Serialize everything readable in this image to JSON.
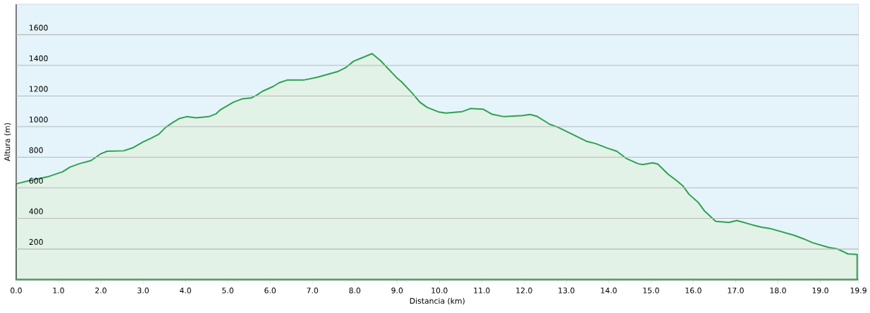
{
  "chart_data": {
    "type": "area",
    "xlabel": "Distancia  (km)",
    "ylabel": "Altura (m)",
    "x": [
      0,
      0.33,
      0.77,
      1.1,
      1.27,
      1.5,
      1.77,
      1.99,
      2.15,
      2.54,
      2.76,
      2.98,
      3.2,
      3.37,
      3.53,
      3.7,
      3.86,
      4.03,
      4.25,
      4.55,
      4.72,
      4.83,
      5.13,
      5.35,
      5.55,
      5.68,
      5.82,
      6.07,
      6.21,
      6.4,
      6.79,
      7.12,
      7.61,
      7.78,
      7.97,
      8.41,
      8.61,
      8.99,
      9.1,
      9.35,
      9.54,
      9.71,
      9.99,
      10.15,
      10.54,
      10.73,
      11.03,
      11.25,
      11.53,
      11.97,
      12.14,
      12.3,
      12.61,
      12.8,
      13.08,
      13.47,
      13.69,
      13.97,
      14.19,
      14.41,
      14.69,
      14.8,
      15.04,
      15.16,
      15.4,
      15.62,
      15.76,
      15.9,
      16.12,
      16.26,
      16.53,
      16.84,
      17.03,
      17.39,
      17.61,
      17.8,
      18.38,
      18.6,
      18.82,
      19.21,
      19.4,
      19.54,
      19.65,
      19.87
    ],
    "series": [
      {
        "color": "#2ea14f",
        "values": [
          626,
          648,
          674,
          705,
          735,
          758,
          778,
          821,
          839,
          842,
          862,
          897,
          926,
          950,
          995,
          1027,
          1053,
          1065,
          1057,
          1065,
          1083,
          1111,
          1159,
          1182,
          1187,
          1205,
          1231,
          1262,
          1286,
          1304,
          1304,
          1323,
          1361,
          1384,
          1427,
          1477,
          1431,
          1320,
          1294,
          1221,
          1159,
          1126,
          1095,
          1088,
          1098,
          1118,
          1114,
          1080,
          1065,
          1072,
          1079,
          1068,
          1015,
          996,
          958,
          905,
          889,
          859,
          839,
          793,
          758,
          752,
          763,
          755,
          690,
          644,
          610,
          557,
          503,
          450,
          381,
          374,
          386,
          358,
          343,
          335,
          290,
          267,
          241,
          209,
          201,
          183,
          168,
          165
        ]
      }
    ],
    "xlim": [
      0,
      19.9
    ],
    "ylim": [
      0,
      1800
    ],
    "xticks": [
      {
        "value": 0,
        "label": "0.0"
      },
      {
        "value": 1,
        "label": "1.0"
      },
      {
        "value": 2,
        "label": "2.0"
      },
      {
        "value": 3,
        "label": "3.0"
      },
      {
        "value": 4,
        "label": "4.0"
      },
      {
        "value": 5,
        "label": "5.0"
      },
      {
        "value": 6,
        "label": "6.0"
      },
      {
        "value": 7,
        "label": "7.0"
      },
      {
        "value": 8,
        "label": "8.0"
      },
      {
        "value": 9,
        "label": "9.0"
      },
      {
        "value": 10,
        "label": "10.0"
      },
      {
        "value": 11,
        "label": "11.0"
      },
      {
        "value": 12,
        "label": "12.0"
      },
      {
        "value": 13,
        "label": "13.0"
      },
      {
        "value": 14,
        "label": "14.0"
      },
      {
        "value": 15,
        "label": "15.0"
      },
      {
        "value": 16,
        "label": "16.0"
      },
      {
        "value": 17,
        "label": "17.0"
      },
      {
        "value": 18,
        "label": "18.0"
      },
      {
        "value": 19,
        "label": "19.0"
      },
      {
        "value": 19.9,
        "label": "19.9"
      }
    ],
    "yticks": [
      200,
      400,
      600,
      800,
      1000,
      1200,
      1400,
      1600
    ],
    "grid": "y",
    "marker": "none",
    "line_style": "solid"
  }
}
